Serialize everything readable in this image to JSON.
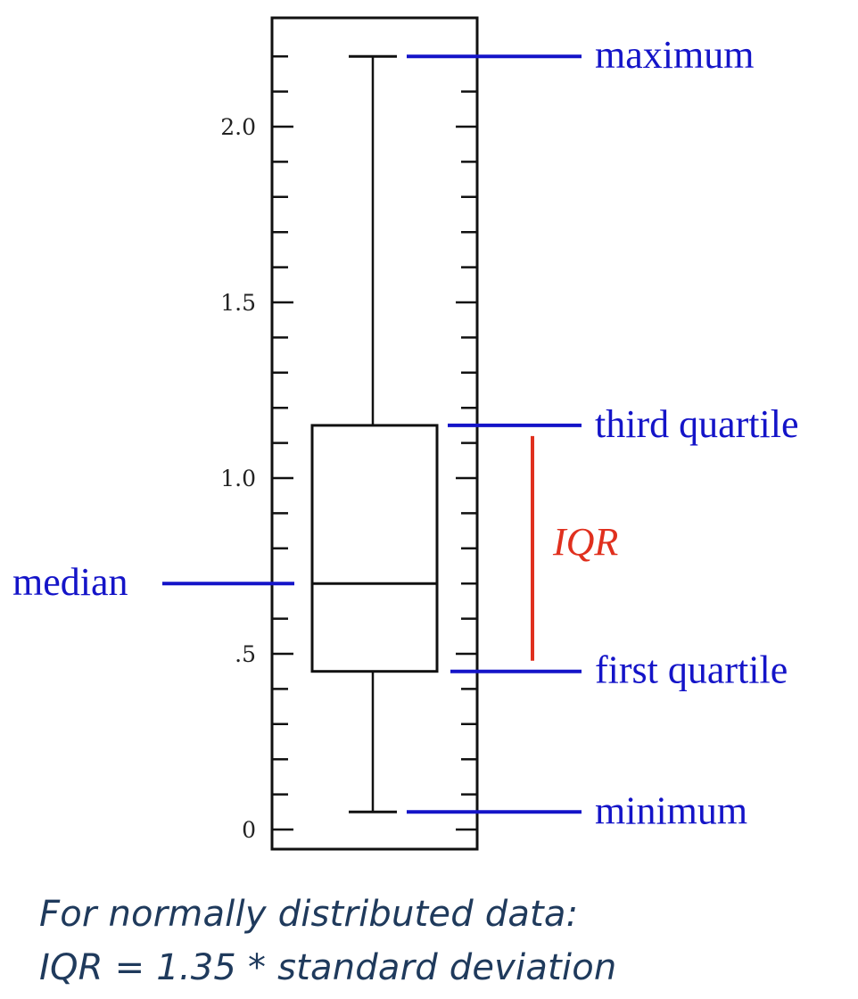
{
  "chart_data": {
    "type": "box",
    "y_ticks": [
      "0",
      ".5",
      "1.0",
      "1.5",
      "2.0"
    ],
    "ylim": [
      0,
      2.3
    ],
    "minimum": 0.05,
    "first_quartile": 0.45,
    "median": 0.7,
    "third_quartile": 1.15,
    "maximum": 2.2
  },
  "labels": {
    "maximum": "maximum",
    "third_quartile": "third quartile",
    "median": "median",
    "first_quartile": "first quartile",
    "minimum": "minimum",
    "iqr": "IQR"
  },
  "colors": {
    "label": "#1414c8",
    "iqr": "#e0301e",
    "footer": "#1f3a5c"
  },
  "footer": {
    "line1": "For normally distributed data:",
    "line2": "IQR = 1.35 * standard deviation"
  }
}
